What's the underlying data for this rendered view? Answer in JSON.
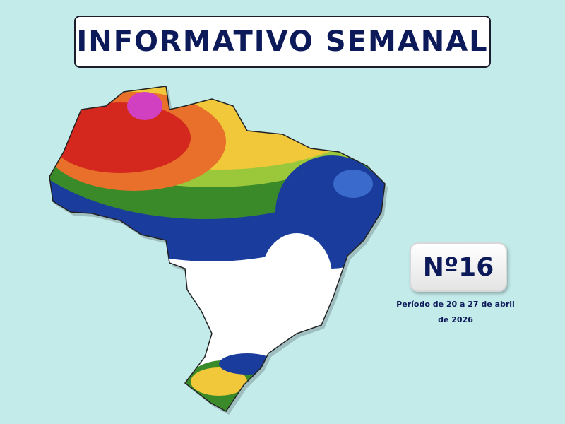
{
  "header": {
    "title": "INFORMATIVO SEMANAL"
  },
  "issue": {
    "number": "Nº16",
    "period": "Período de 20 a 27 de abril de 2026"
  }
}
